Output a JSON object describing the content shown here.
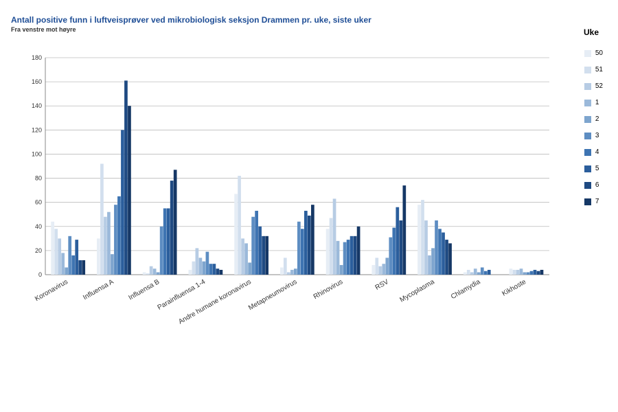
{
  "title": "Antall positive funn i luftveisprøver ved mikrobiologisk seksjon Drammen pr. uke, siste uker",
  "subtitle": "Fra venstre mot høyre",
  "legend_title": "Uke",
  "chart": {
    "type": "bar",
    "ylim": [
      0,
      180
    ],
    "ytick_step": 20,
    "background_color": "#ffffff",
    "grid_color": "#bbbbbb",
    "axis_color": "#888888",
    "bar_group_gap": 0.25,
    "categories": [
      "Koronavirus",
      "Influensa A",
      "Influensa B",
      "Parainfluensa 1-4",
      "Andre humane koronavirus",
      "Metapneumovirus",
      "Rhinovirus",
      "RSV",
      "Mycoplasma",
      "Chlamydia",
      "Kikhoste"
    ],
    "series": [
      {
        "name": "50",
        "color": "#e6edf5"
      },
      {
        "name": "51",
        "color": "#d2dfee"
      },
      {
        "name": "52",
        "color": "#b7cce4"
      },
      {
        "name": "1",
        "color": "#9bb9da"
      },
      {
        "name": "2",
        "color": "#7ea5ce"
      },
      {
        "name": "3",
        "color": "#5d8dc2"
      },
      {
        "name": "4",
        "color": "#3e74b2"
      },
      {
        "name": "5",
        "color": "#2b5e9c"
      },
      {
        "name": "6",
        "color": "#1f4a82"
      },
      {
        "name": "7",
        "color": "#163866"
      }
    ],
    "data": {
      "Koronavirus": [
        44,
        38,
        30,
        18,
        6,
        32,
        16,
        29,
        12,
        12
      ],
      "Influensa A": [
        30,
        92,
        48,
        52,
        17,
        58,
        65,
        120,
        161,
        140
      ],
      "Influensa B": [
        2,
        1,
        7,
        5,
        2,
        40,
        55,
        55,
        78,
        87
      ],
      "Parainfluensa 1-4": [
        4,
        11,
        22,
        14,
        11,
        19,
        9,
        9,
        5,
        4
      ],
      "Andre humane koronavirus": [
        67,
        82,
        30,
        26,
        10,
        48,
        53,
        40,
        32,
        32
      ],
      "Metapneumovirus": [
        6,
        14,
        2,
        4,
        5,
        44,
        38,
        53,
        49,
        58
      ],
      "Rhinovirus": [
        38,
        47,
        63,
        28,
        8,
        27,
        29,
        32,
        32,
        40
      ],
      "RSV": [
        8,
        14,
        7,
        9,
        14,
        31,
        39,
        56,
        45,
        74
      ],
      "Mycoplasma": [
        58,
        62,
        45,
        16,
        22,
        45,
        38,
        35,
        29,
        26
      ],
      "Chlamydia": [
        2,
        4,
        2,
        5,
        2,
        6,
        3,
        4,
        0,
        0
      ],
      "Kikhoste": [
        5,
        4,
        4,
        5,
        2,
        2,
        3,
        4,
        3,
        4
      ]
    },
    "title_fontsize": 12,
    "title_color": "#1f4e96",
    "subtitle_fontsize": 9,
    "label_fontsize": 10,
    "xlabel_rotation": -30
  }
}
